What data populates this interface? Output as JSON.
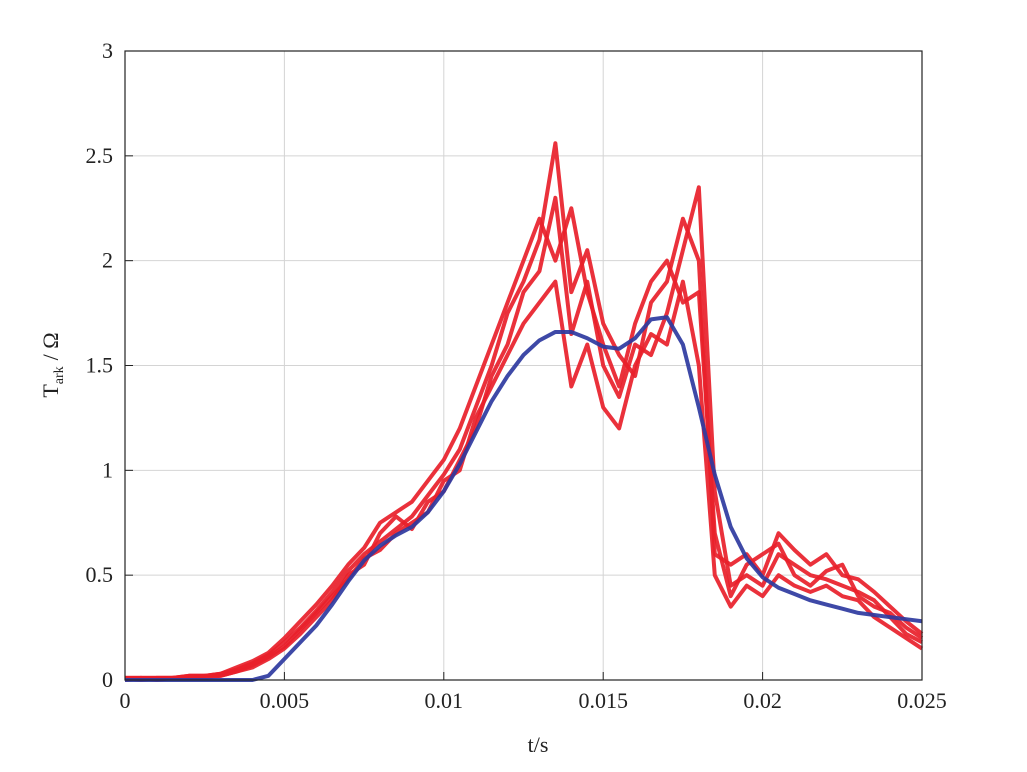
{
  "chart_data": {
    "type": "line",
    "xlabel": "t/s",
    "ylabel_base": "T",
    "ylabel_sub": "ark",
    "ylabel_unit": "/ Ω",
    "xlim": [
      0,
      0.025
    ],
    "ylim": [
      0,
      3
    ],
    "xticks": [
      0,
      0.005,
      0.01,
      0.015,
      0.02,
      0.025
    ],
    "yticks": [
      0,
      0.5,
      1,
      1.5,
      2,
      2.5,
      3
    ],
    "grid": true,
    "x": [
      0,
      0.0005,
      0.001,
      0.0015,
      0.002,
      0.0025,
      0.003,
      0.0035,
      0.004,
      0.0045,
      0.005,
      0.0055,
      0.006,
      0.0065,
      0.007,
      0.0075,
      0.008,
      0.0085,
      0.009,
      0.0095,
      0.01,
      0.0105,
      0.011,
      0.0115,
      0.012,
      0.0125,
      0.013,
      0.0135,
      0.014,
      0.0145,
      0.015,
      0.0155,
      0.016,
      0.0165,
      0.017,
      0.0175,
      0.018,
      0.0185,
      0.019,
      0.0195,
      0.02,
      0.0205,
      0.021,
      0.0215,
      0.022,
      0.0225,
      0.023,
      0.0235,
      0.024,
      0.0245,
      0.025
    ],
    "series": [
      {
        "color": "#e8202a",
        "values": [
          0.01,
          0.01,
          0.01,
          0.01,
          0.02,
          0.02,
          0.03,
          0.05,
          0.08,
          0.12,
          0.18,
          0.25,
          0.33,
          0.42,
          0.52,
          0.6,
          0.66,
          0.72,
          0.78,
          0.88,
          0.98,
          1.1,
          1.3,
          1.5,
          1.75,
          1.9,
          2.1,
          2.56,
          1.85,
          2.05,
          1.7,
          1.55,
          1.45,
          1.8,
          1.9,
          2.2,
          2.0,
          0.6,
          0.55,
          0.6,
          0.5,
          0.7,
          0.62,
          0.55,
          0.6,
          0.5,
          0.48,
          0.42,
          0.35,
          0.28,
          0.22
        ]
      },
      {
        "color": "#e8202a",
        "values": [
          0.0,
          0.01,
          0.01,
          0.01,
          0.01,
          0.02,
          0.02,
          0.04,
          0.06,
          0.1,
          0.15,
          0.22,
          0.3,
          0.38,
          0.5,
          0.55,
          0.7,
          0.78,
          0.72,
          0.85,
          0.9,
          1.05,
          1.2,
          1.45,
          1.6,
          1.85,
          1.95,
          2.3,
          1.65,
          1.9,
          1.5,
          1.35,
          1.6,
          1.55,
          1.75,
          2.05,
          2.35,
          0.9,
          0.45,
          0.5,
          0.45,
          0.6,
          0.55,
          0.5,
          0.48,
          0.45,
          0.42,
          0.38,
          0.3,
          0.22,
          0.18
        ]
      },
      {
        "color": "#e8202a",
        "values": [
          0.01,
          0.0,
          0.01,
          0.01,
          0.02,
          0.02,
          0.03,
          0.06,
          0.09,
          0.13,
          0.2,
          0.28,
          0.36,
          0.45,
          0.55,
          0.63,
          0.75,
          0.8,
          0.85,
          0.95,
          1.05,
          1.2,
          1.4,
          1.6,
          1.8,
          2.0,
          2.2,
          2.0,
          2.25,
          1.85,
          1.6,
          1.4,
          1.7,
          1.9,
          2.0,
          1.8,
          1.85,
          0.7,
          0.4,
          0.55,
          0.6,
          0.65,
          0.5,
          0.45,
          0.52,
          0.55,
          0.4,
          0.35,
          0.32,
          0.25,
          0.2
        ]
      },
      {
        "color": "#e8202a",
        "values": [
          0.01,
          0.01,
          0.0,
          0.01,
          0.01,
          0.01,
          0.02,
          0.04,
          0.07,
          0.11,
          0.16,
          0.24,
          0.32,
          0.4,
          0.48,
          0.58,
          0.62,
          0.7,
          0.75,
          0.8,
          0.95,
          1.0,
          1.25,
          1.4,
          1.55,
          1.7,
          1.8,
          1.9,
          1.4,
          1.6,
          1.3,
          1.2,
          1.5,
          1.65,
          1.6,
          1.9,
          1.5,
          0.5,
          0.35,
          0.45,
          0.4,
          0.5,
          0.45,
          0.42,
          0.45,
          0.4,
          0.38,
          0.3,
          0.25,
          0.2,
          0.15
        ]
      },
      {
        "color": "#2e3aa0",
        "values": [
          0,
          0,
          0,
          0,
          0,
          0,
          0,
          0,
          0,
          0.02,
          0.1,
          0.18,
          0.26,
          0.36,
          0.47,
          0.57,
          0.64,
          0.69,
          0.73,
          0.8,
          0.9,
          1.03,
          1.18,
          1.33,
          1.45,
          1.55,
          1.62,
          1.66,
          1.66,
          1.63,
          1.59,
          1.58,
          1.63,
          1.72,
          1.73,
          1.6,
          1.3,
          0.98,
          0.73,
          0.58,
          0.49,
          0.44,
          0.41,
          0.38,
          0.36,
          0.34,
          0.32,
          0.31,
          0.3,
          0.29,
          0.28
        ]
      }
    ]
  }
}
